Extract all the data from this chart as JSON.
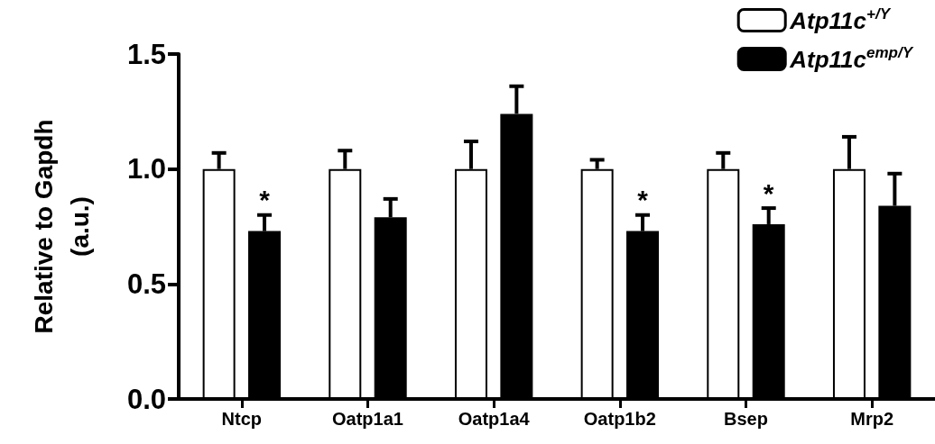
{
  "chart_data": {
    "type": "bar",
    "ylabel": "Relative to Gapdh\n(a.u.)",
    "categories": [
      "Ntcp",
      "Oatp1a1",
      "Oatp1a4",
      "Oatp1b2",
      "Bsep",
      "Mrp2"
    ],
    "series": [
      {
        "name": "Atp11c$^{+/Y}$",
        "color": "#ffffff",
        "values": [
          1.0,
          1.0,
          1.0,
          1.0,
          1.0,
          1.0
        ],
        "errors": [
          [
            1.0,
            1.07
          ],
          [
            1.0,
            1.08
          ],
          [
            1.0,
            1.12
          ],
          [
            1.0,
            1.04
          ],
          [
            1.0,
            1.07
          ],
          [
            1.0,
            1.14
          ]
        ]
      },
      {
        "name": "Atp11c$^{emp/Y}$",
        "color": "#000000",
        "values": [
          0.73,
          0.79,
          1.24,
          0.73,
          0.76,
          0.84
        ],
        "errors": [
          [
            0.73,
            0.8
          ],
          [
            0.79,
            0.87
          ],
          [
            1.24,
            1.36
          ],
          [
            0.73,
            0.8
          ],
          [
            0.76,
            0.83
          ],
          [
            0.84,
            0.98
          ]
        ]
      }
    ],
    "ylim": [
      0,
      1.5
    ],
    "yticks": [
      {
        "value": 0,
        "label": "0.0"
      },
      {
        "value": 0.5,
        "label": "0.5"
      },
      {
        "value": 1,
        "label": "1.0"
      },
      {
        "value": 1.5,
        "label": "1.5"
      }
    ],
    "annotations": [
      "*",
      "*",
      "*"
    ],
    "legend": "top right",
    "grid": false
  }
}
